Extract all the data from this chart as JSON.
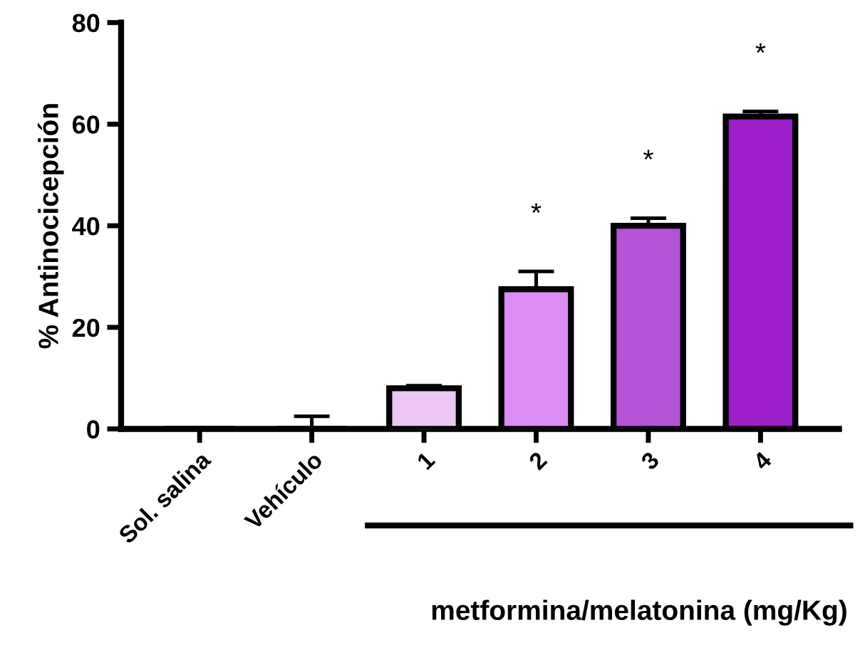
{
  "chart_data": {
    "type": "bar",
    "categories": [
      "Sol. salina",
      "Vehículo",
      "1",
      "2",
      "3",
      "4"
    ],
    "values": [
      0,
      0,
      8,
      27.5,
      40,
      61.5
    ],
    "errors": [
      null,
      2.5,
      0.5,
      3.5,
      1.5,
      1
    ],
    "colors": [
      "#ffffff",
      "#ffffff",
      "#ecc6f5",
      "#dc8cf5",
      "#b552d6",
      "#9c1ec8"
    ],
    "ylabel": "% Antinocicepción",
    "xlabel": "metformina/melatonina (mg/Kg)",
    "annotations": [
      "*",
      "*",
      "*"
    ],
    "ylim": [
      0,
      80
    ],
    "yticks": [
      0,
      20,
      40,
      60,
      80
    ],
    "grid": false,
    "legend": false
  }
}
